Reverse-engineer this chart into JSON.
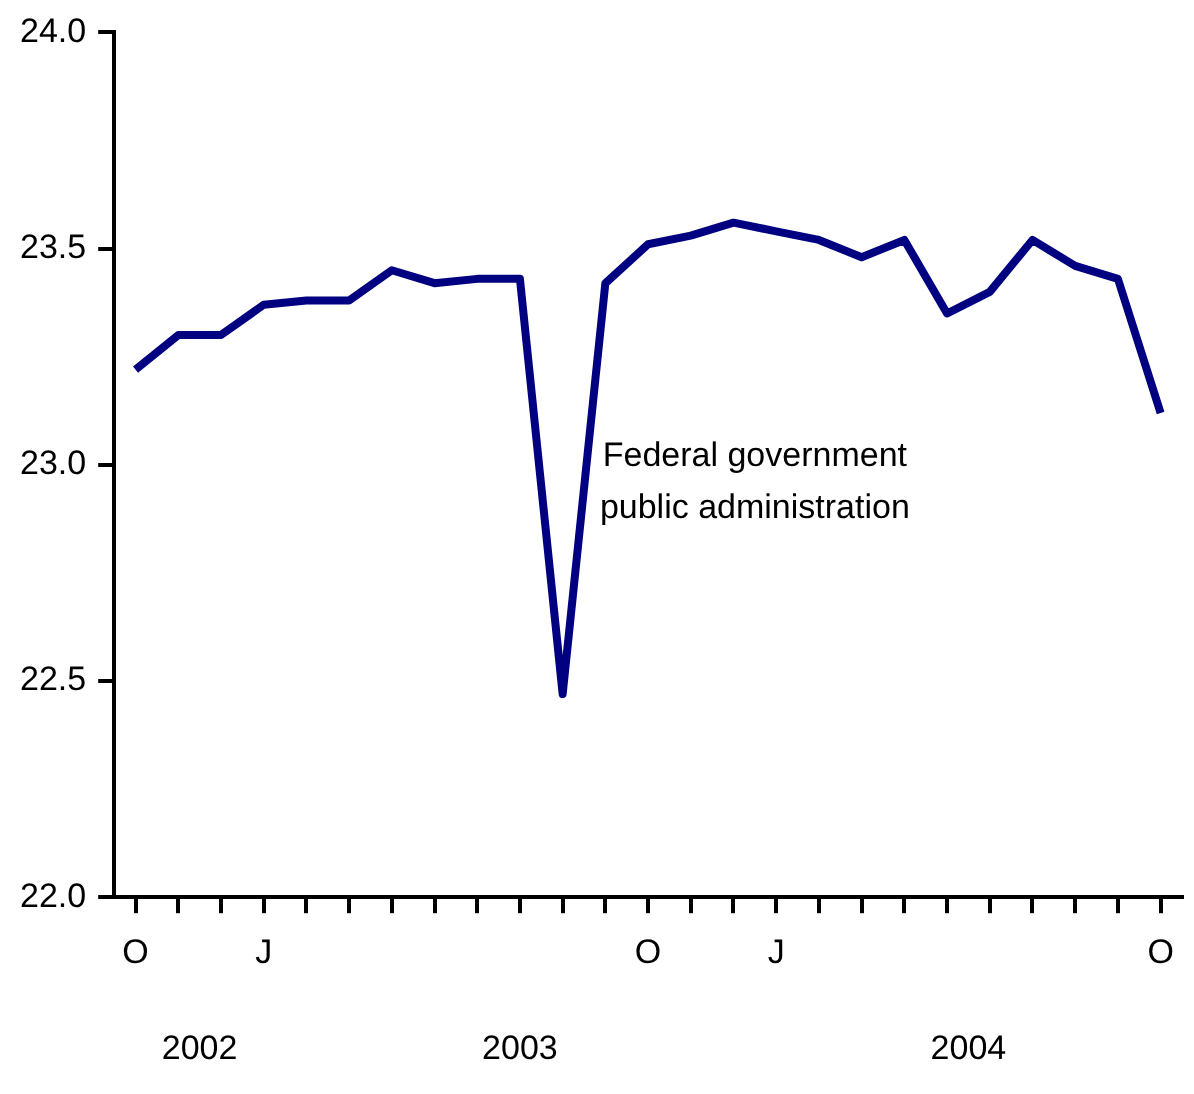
{
  "chart_data": {
    "type": "line",
    "categories": [
      "O",
      null,
      null,
      "J",
      null,
      null,
      null,
      null,
      null,
      null,
      null,
      null,
      "O",
      null,
      null,
      "J",
      null,
      null,
      null,
      null,
      null,
      null,
      null,
      null,
      "O"
    ],
    "series": [
      {
        "color": "#000080",
        "values": [
          23.22,
          23.3,
          23.3,
          23.37,
          23.38,
          23.38,
          23.45,
          23.42,
          23.43,
          23.43,
          22.47,
          23.42,
          23.51,
          23.53,
          23.56,
          23.54,
          23.52,
          23.48,
          23.52,
          23.35,
          23.4,
          23.52,
          23.46,
          23.43,
          23.12
        ]
      }
    ],
    "ylim": [
      22.0,
      24.0
    ],
    "yticks": [
      {
        "value": 22,
        "label": "22.0"
      },
      {
        "value": 22.5,
        "label": "22.5"
      },
      {
        "value": 23,
        "label": "23.0"
      },
      {
        "value": 23.5,
        "label": "23.5"
      },
      {
        "value": 24,
        "label": "24.0"
      }
    ],
    "grid": false,
    "legend": false,
    "annotations": [
      "2002",
      "2003",
      "2004",
      "Federal government\npublic administration"
    ]
  }
}
